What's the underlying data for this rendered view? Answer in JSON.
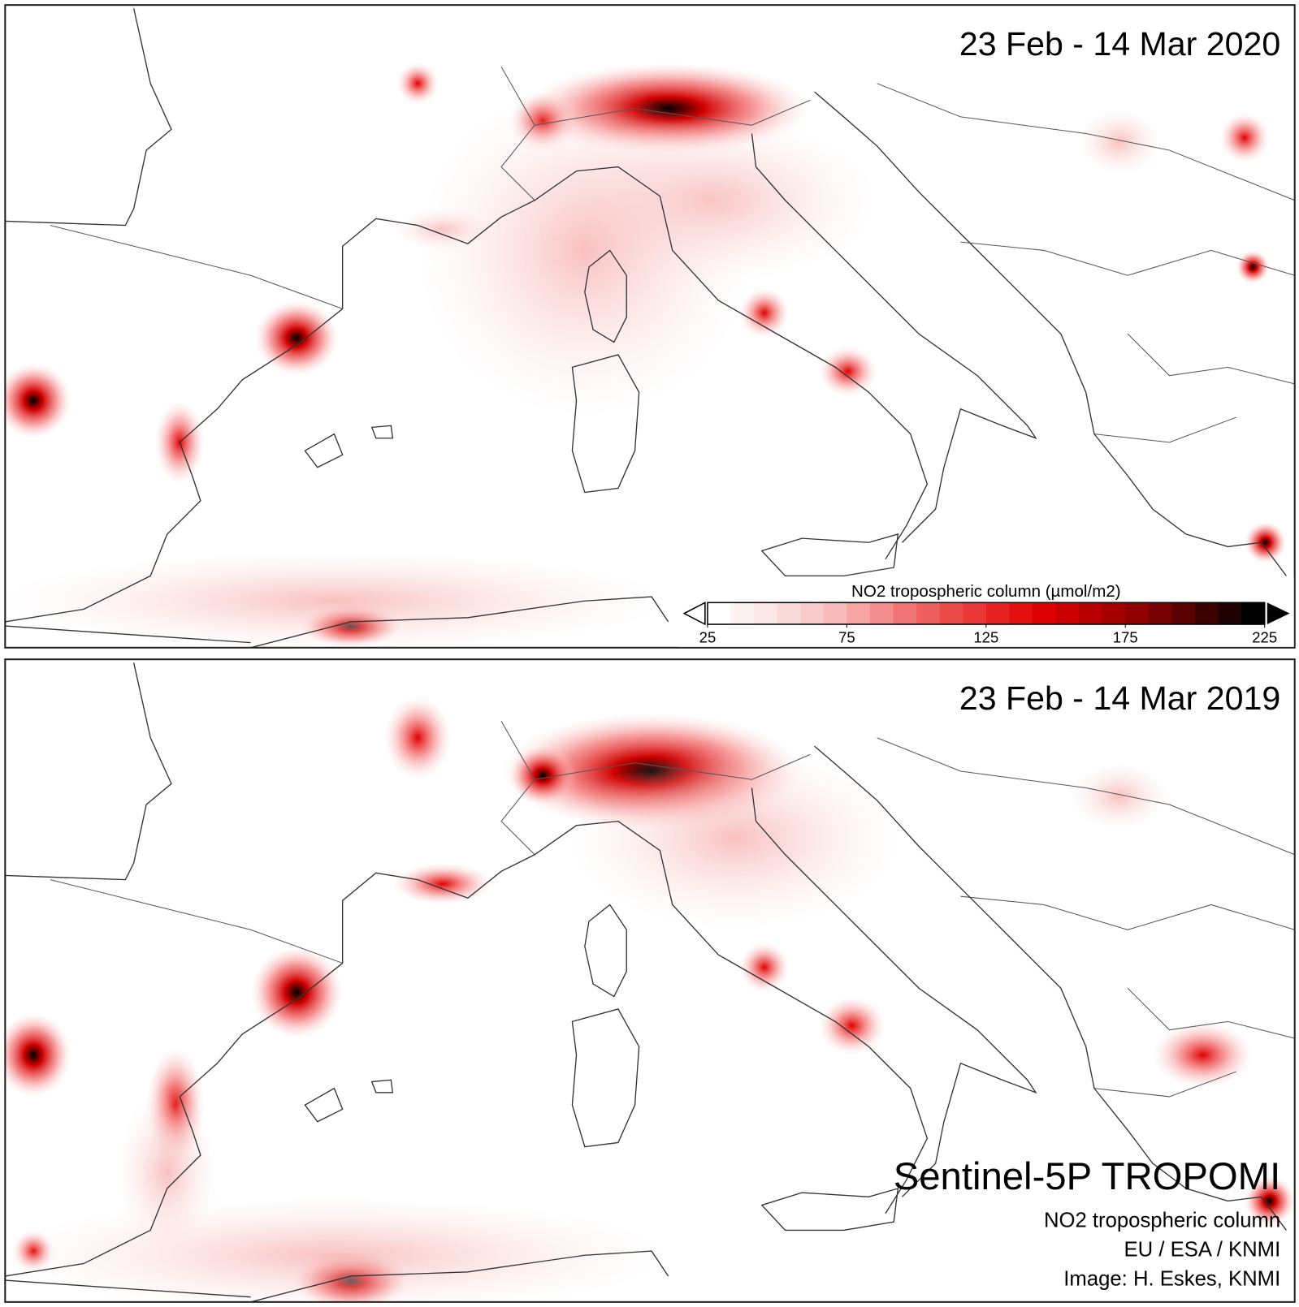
{
  "panels": [
    {
      "title": "23 Feb - 14 Mar 2020"
    },
    {
      "title": "23 Feb - 14 Mar 2019"
    }
  ],
  "colorbar": {
    "label": "NO2 tropospheric column (µmol/m2)",
    "range": [
      25,
      225
    ],
    "ticks": [
      25,
      75,
      125,
      175,
      225
    ],
    "colors": [
      "#ffffff",
      "#f8c4c4",
      "#f05a5a",
      "#e00000",
      "#8a0000",
      "#000000"
    ]
  },
  "credits": {
    "title": "Sentinel-5P TROPOMI",
    "lines": [
      "NO2 tropospheric column",
      "EU / ESA / KNMI",
      "Image: H. Eskes, KNMI"
    ]
  }
}
